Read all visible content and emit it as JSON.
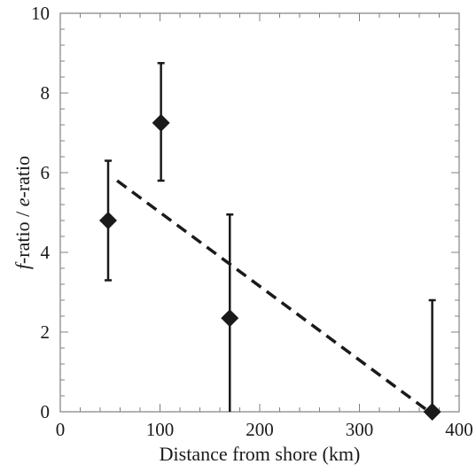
{
  "chart_data": {
    "type": "scatter",
    "title": "",
    "xlabel": "Distance from shore (km)",
    "ylabel": {
      "parts": [
        {
          "text": "f",
          "italic": true
        },
        {
          "text": "-ratio / ",
          "italic": false
        },
        {
          "text": "e",
          "italic": true
        },
        {
          "text": "-ratio",
          "italic": false
        }
      ]
    },
    "xlim": [
      0,
      400
    ],
    "ylim": [
      0,
      10
    ],
    "xticks": [
      0,
      100,
      200,
      300,
      400
    ],
    "yticks": [
      0,
      2,
      4,
      6,
      8,
      10
    ],
    "grid": false,
    "legend": "none",
    "marker": "diamond",
    "colors": {
      "marker": "#1a1a1a",
      "line": "#1a1a1a",
      "axis": "#808080"
    },
    "series": [
      {
        "points": [
          {
            "x": 48,
            "y": 4.8,
            "y_low": 3.3,
            "y_high": 6.3
          },
          {
            "x": 101,
            "y": 7.25,
            "y_low": 5.8,
            "y_high": 8.75
          },
          {
            "x": 170,
            "y": 2.35,
            "y_low": 0,
            "y_high": 4.95
          },
          {
            "x": 373,
            "y": 0,
            "y_low": 0,
            "y_high": 2.8
          }
        ]
      }
    ],
    "trendline": {
      "style": "dashed",
      "x": [
        57,
        370
      ],
      "y": [
        5.8,
        0.0
      ]
    }
  }
}
